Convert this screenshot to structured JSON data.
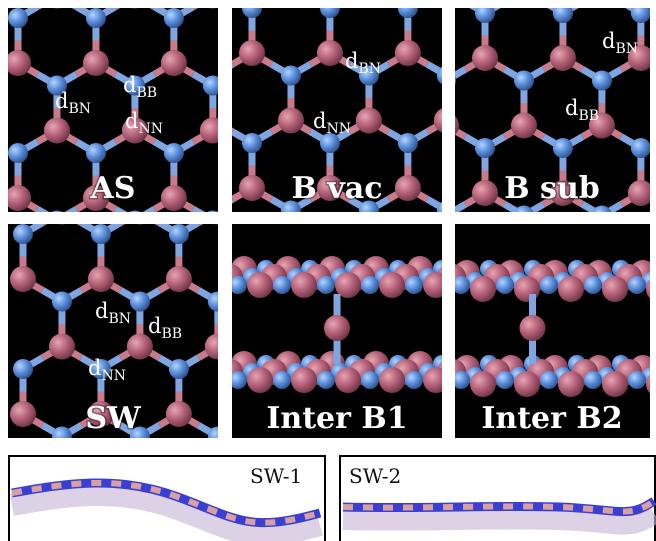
{
  "panels": [
    {
      "label": "AS",
      "annotations": [
        {
          "text": "d",
          "sub": "BB"
        },
        {
          "text": "d",
          "sub": "BN"
        },
        {
          "text": "d",
          "sub": "NN"
        }
      ]
    },
    {
      "label": "B vac",
      "annotations": [
        {
          "text": "d",
          "sub": "BN"
        },
        {
          "text": "d",
          "sub": "NN"
        }
      ]
    },
    {
      "label": "B sub",
      "annotations": [
        {
          "text": "d",
          "sub": "BN"
        },
        {
          "text": "d",
          "sub": "BB"
        }
      ]
    },
    {
      "label": "SW",
      "annotations": [
        {
          "text": "d",
          "sub": "BN"
        },
        {
          "text": "d",
          "sub": "BB"
        },
        {
          "text": "d",
          "sub": "NN"
        }
      ]
    },
    {
      "label": "Inter B1",
      "annotations": []
    },
    {
      "label": "Inter B2",
      "annotations": []
    }
  ],
  "bottom": [
    {
      "label": "SW-1"
    },
    {
      "label": "SW-2"
    }
  ]
}
